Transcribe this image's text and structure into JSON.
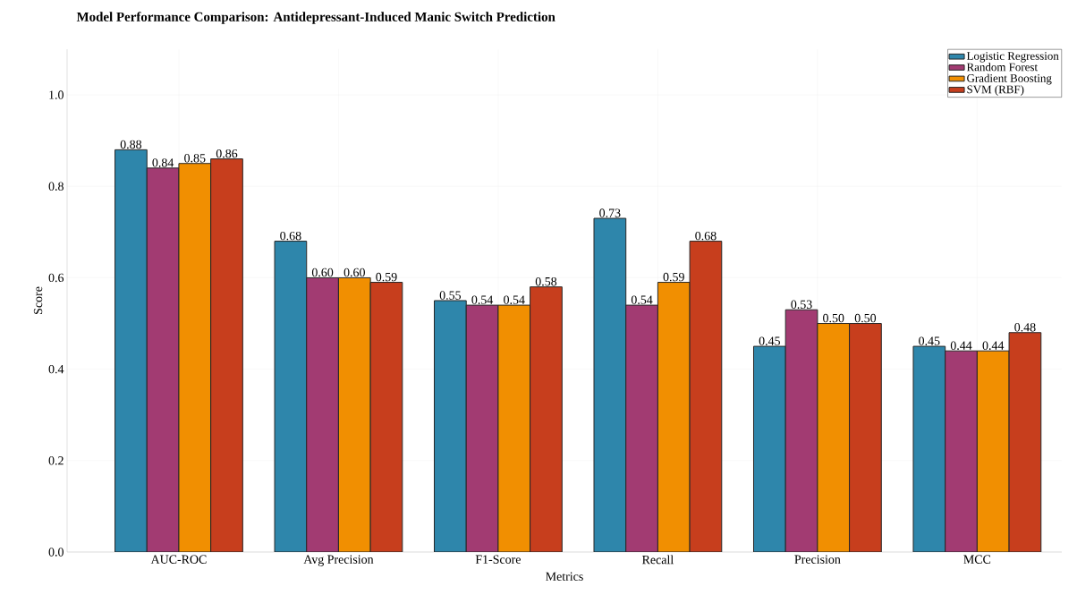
{
  "chart_data": {
    "type": "bar",
    "title": "Model Performance Comparison: Antidepressant-Induced Manic Switch Prediction",
    "xlabel": "Metrics",
    "ylabel": "Score",
    "categories": [
      "AUC-ROC",
      "Avg Precision",
      "F1-Score",
      "Recall",
      "Precision",
      "MCC"
    ],
    "series": [
      {
        "name": "Logistic Regression",
        "color": "#2e86ab",
        "values": [
          0.88,
          0.68,
          0.55,
          0.73,
          0.45,
          0.45
        ],
        "value_labels": [
          "0.88",
          "0.68",
          "0.55",
          "0.73",
          "0.45",
          "0.45"
        ]
      },
      {
        "name": "Random Forest",
        "color": "#a23b72",
        "values": [
          0.84,
          0.6,
          0.54,
          0.54,
          0.53,
          0.44
        ],
        "value_labels": [
          "0.84",
          "0.60",
          "0.54",
          "0.54",
          "0.53",
          "0.44"
        ]
      },
      {
        "name": "Gradient Boosting",
        "color": "#f18f01",
        "values": [
          0.85,
          0.6,
          0.54,
          0.59,
          0.5,
          0.44
        ],
        "value_labels": [
          "0.85",
          "0.60",
          "0.54",
          "0.59",
          "0.50",
          "0.44"
        ]
      },
      {
        "name": "SVM (RBF)",
        "color": "#c73e1d",
        "values": [
          0.86,
          0.59,
          0.58,
          0.68,
          0.5,
          0.48
        ],
        "value_labels": [
          "0.86",
          "0.59",
          "0.58",
          "0.68",
          "0.50",
          "0.48"
        ]
      }
    ],
    "ylim": [
      0,
      1.1
    ],
    "yticks": [
      {
        "value": 0,
        "label": "0.0"
      },
      {
        "value": 0.2,
        "label": "0.2"
      },
      {
        "value": 0.4,
        "label": "0.4"
      },
      {
        "value": 0.6,
        "label": "0.6"
      },
      {
        "value": 0.8,
        "label": "0.8"
      },
      {
        "value": 1.0,
        "label": "1.0"
      }
    ],
    "grid": true,
    "legend": "top right"
  }
}
